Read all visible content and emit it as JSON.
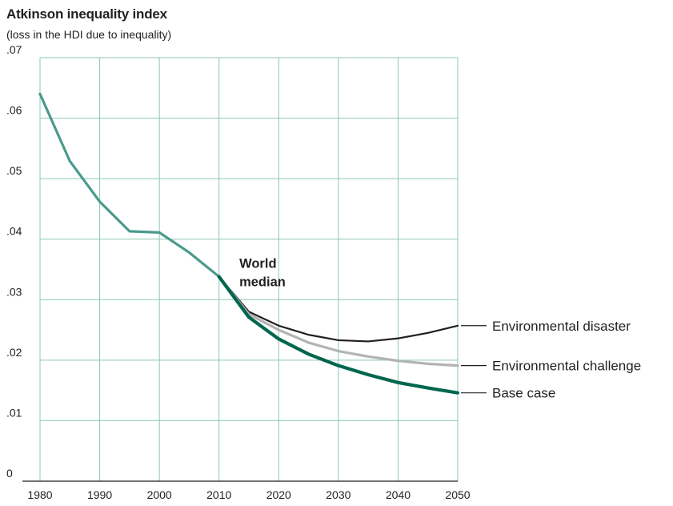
{
  "chart_data": {
    "type": "line",
    "title": "Atkinson inequality index",
    "subtitle": "(loss in the HDI due to inequality)",
    "xlabel": "",
    "ylabel": "",
    "xlim": [
      1980,
      2050
    ],
    "ylim": [
      0,
      0.07
    ],
    "x_ticks": [
      1980,
      1990,
      2000,
      2010,
      2020,
      2030,
      2040,
      2050
    ],
    "x_tick_labels": [
      "1980",
      "1990",
      "2000",
      "2010",
      "2020",
      "2030",
      "2040",
      "2050"
    ],
    "y_ticks": [
      0,
      0.01,
      0.02,
      0.03,
      0.04,
      0.05,
      0.06,
      0.07
    ],
    "y_tick_labels": [
      "0",
      ".01",
      ".02",
      ".03",
      ".04",
      ".05",
      ".06",
      ".07"
    ],
    "grid": true,
    "annotation": {
      "text": [
        "World",
        "median"
      ],
      "x": 2013,
      "y": 0.034
    },
    "series": [
      {
        "name": "",
        "color": "#4a9a8a",
        "x": [
          1980,
          1985,
          1990,
          1995,
          2000,
          2005,
          2010
        ],
        "y": [
          0.064,
          0.0529,
          0.0462,
          0.0413,
          0.0411,
          0.0378,
          0.0338
        ]
      },
      {
        "name": "Environmental disaster",
        "color": "#231f20",
        "x": [
          2010,
          2015,
          2020,
          2025,
          2030,
          2035,
          2040,
          2045,
          2050
        ],
        "y": [
          0.0338,
          0.028,
          0.0257,
          0.0242,
          0.0233,
          0.0231,
          0.0236,
          0.0245,
          0.0257
        ]
      },
      {
        "name": "Environmental challenge",
        "color": "#b3b3b3",
        "x": [
          2010,
          2015,
          2020,
          2025,
          2030,
          2035,
          2040,
          2045,
          2050
        ],
        "y": [
          0.0338,
          0.0276,
          0.025,
          0.0229,
          0.0215,
          0.0206,
          0.0199,
          0.0194,
          0.0191
        ]
      },
      {
        "name": "Base case",
        "color": "#00664f",
        "x": [
          2010,
          2015,
          2020,
          2025,
          2030,
          2035,
          2040,
          2045,
          2050
        ],
        "y": [
          0.0338,
          0.0271,
          0.0235,
          0.021,
          0.0191,
          0.0176,
          0.0163,
          0.0154,
          0.0146
        ]
      }
    ]
  }
}
